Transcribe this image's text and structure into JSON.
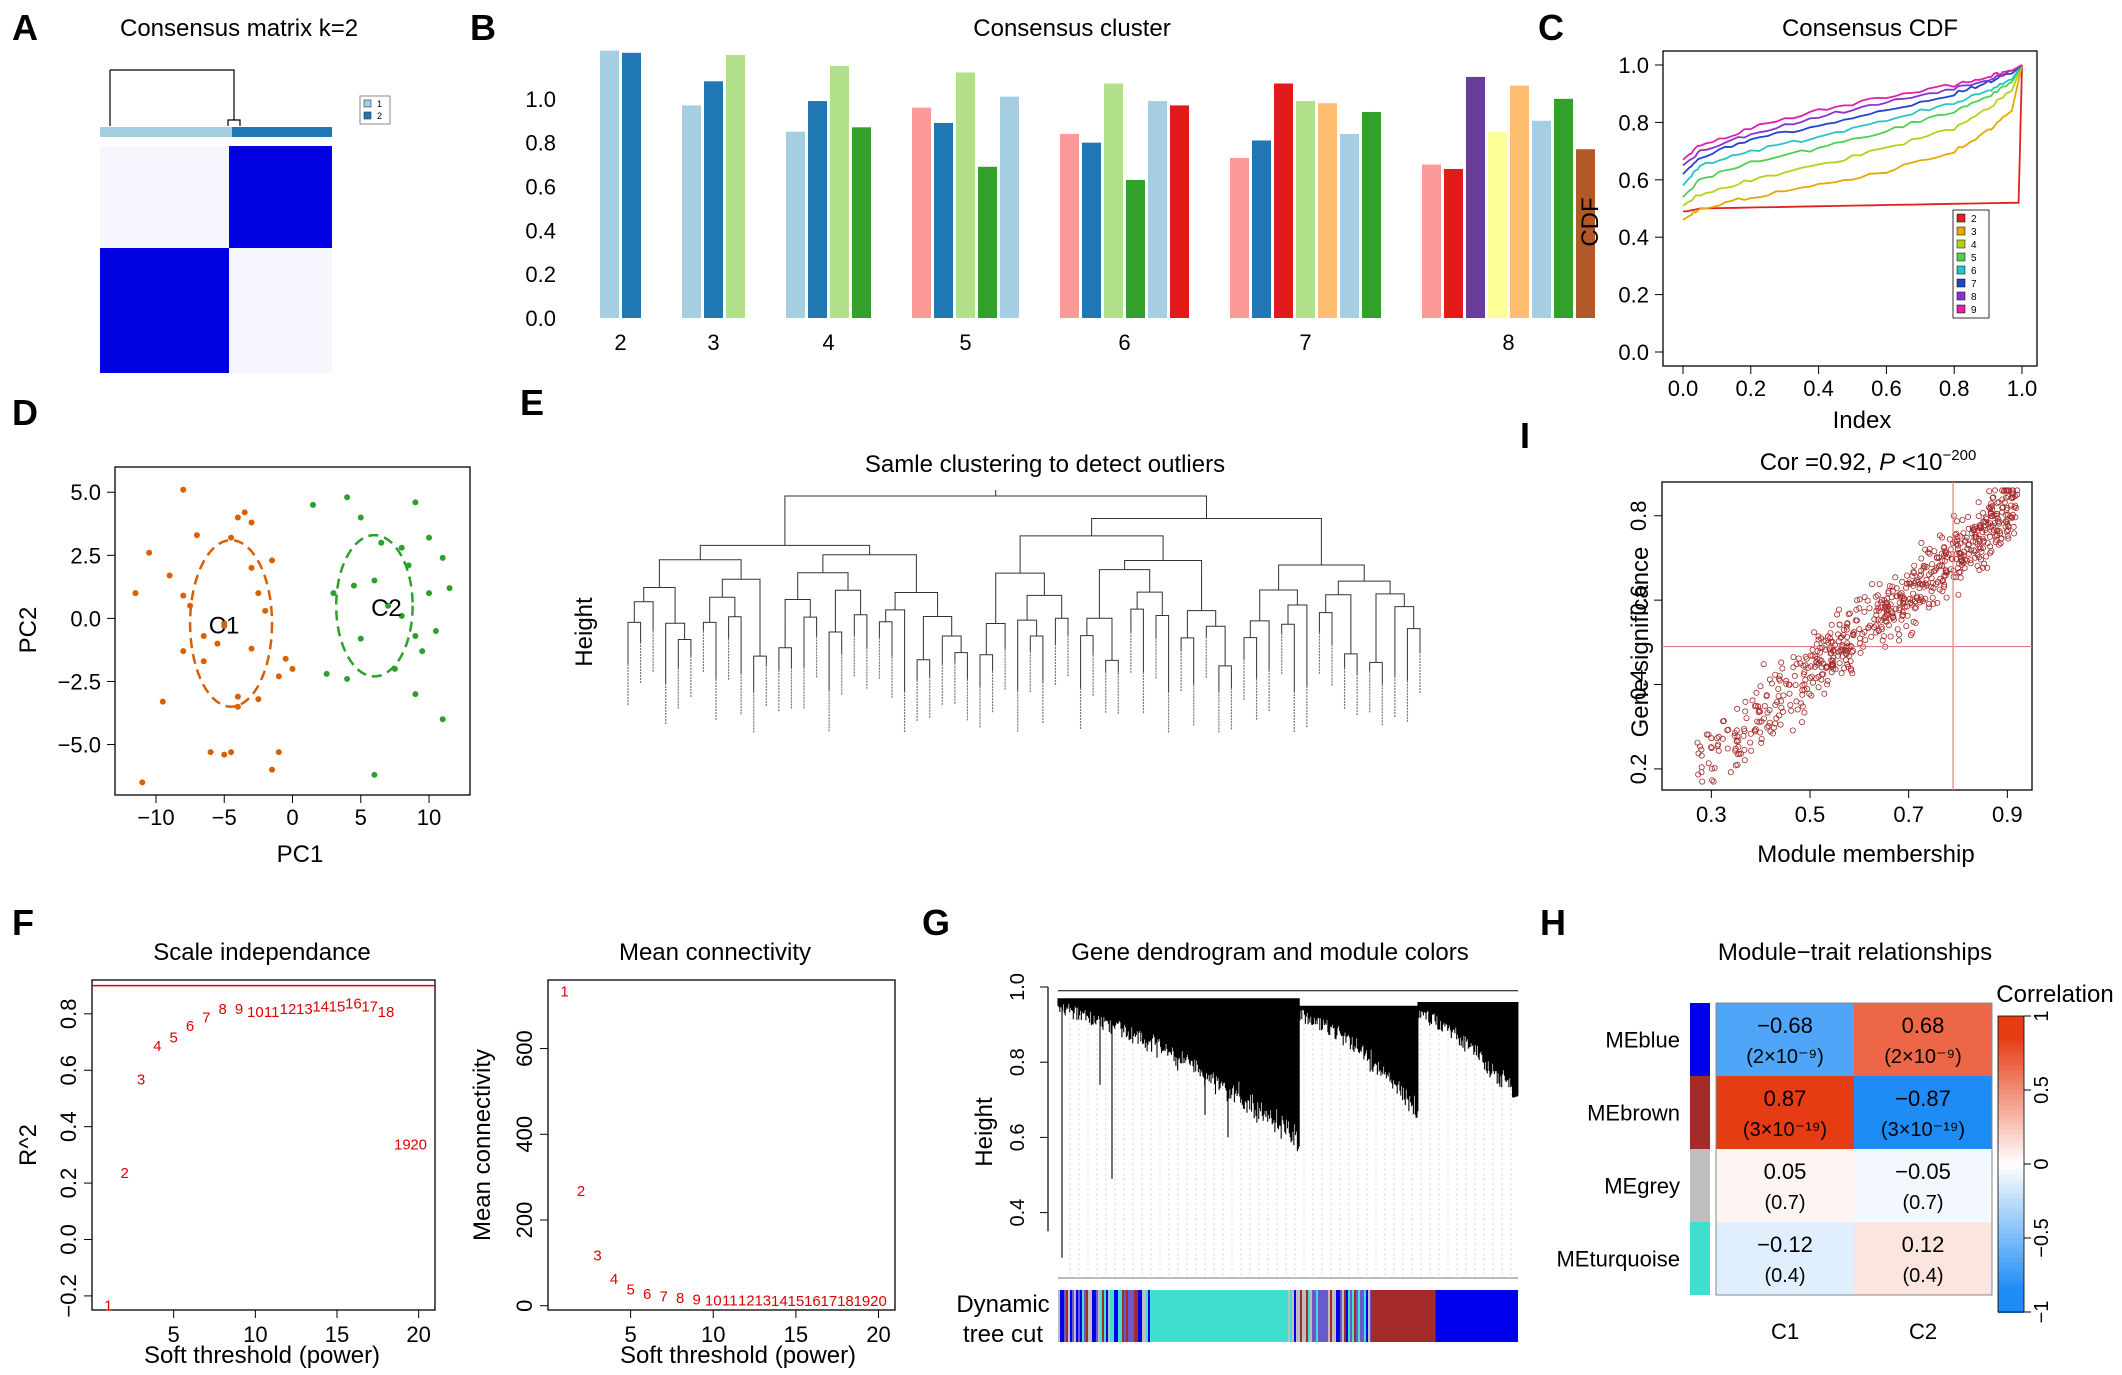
{
  "panels": {
    "A": {
      "letter": "A",
      "title": "Consensus matrix k=2",
      "legend": [
        "1",
        "2"
      ]
    },
    "B": {
      "letter": "B",
      "title": "Consensus cluster"
    },
    "C": {
      "letter": "C",
      "title": "Consensus CDF",
      "xlabel": "Index",
      "ylabel": "CDF"
    },
    "D": {
      "letter": "D",
      "xlabel": "PC1",
      "ylabel": "PC2",
      "cluster_labels": [
        "C1",
        "C2"
      ]
    },
    "E": {
      "letter": "E",
      "title": "Samle clustering to detect outliers",
      "ylabel": "Height"
    },
    "F": {
      "letter": "F",
      "title_left": "Scale independance",
      "title_right": "Mean connectivity",
      "xlabel": "Soft threshold (power)",
      "ylabel_left": "R^2",
      "ylabel_right": "Mean connectivity"
    },
    "G": {
      "letter": "G",
      "title": "Gene dendrogram and module colors",
      "ylabel": "Height",
      "bar_label_1": "Dynamic",
      "bar_label_2": "tree cut"
    },
    "H": {
      "letter": "H",
      "title": "Module−trait relationships",
      "legend_title": "Correlation"
    },
    "I": {
      "letter": "I",
      "title_prefix": "Cor =0.92, ",
      "title_p": "P",
      "title_rest": " <10",
      "title_exp": "−200",
      "xlabel": "Module membership",
      "ylabel": "Gene significance"
    }
  },
  "colors": {
    "c1": "#a6cee3",
    "c2": "#1f78b4",
    "c3": "#b2df8a",
    "c4": "#33a02c",
    "c5": "#fb9a99",
    "c6": "#e31a1c",
    "c7": "#fdbf6f",
    "c8": "#ff7f00",
    "c9": "#cab2d6",
    "c10": "#6a3d9a",
    "c11": "#ffff99",
    "c12": "#b15928",
    "pca_c1": "#d95f02",
    "pca_c2": "#2ca02c",
    "heat_blue": "#0000ff",
    "point_red": "#a52a2a"
  },
  "chart_data": [
    {
      "panel": "A",
      "type": "heatmap",
      "title": "Consensus matrix k=2",
      "cluster_sizes": [
        0.55,
        0.45
      ],
      "legend": [
        "1",
        "2"
      ]
    },
    {
      "panel": "B",
      "type": "bar",
      "title": "Consensus cluster",
      "ylim": [
        0,
        1.2
      ],
      "yticks": [
        "0.0",
        "0.2",
        "0.4",
        "0.6",
        "0.8",
        "1.0"
      ],
      "groups": [
        {
          "k": "2",
          "values": [
            1.22,
            1.21
          ],
          "colors": [
            "c1",
            "c2"
          ]
        },
        {
          "k": "3",
          "values": [
            0.97,
            1.08,
            1.2
          ],
          "colors": [
            "c1",
            "c2",
            "c3"
          ]
        },
        {
          "k": "4",
          "values": [
            0.85,
            0.99,
            1.15,
            0.87
          ],
          "colors": [
            "c1",
            "c2",
            "c3",
            "c4"
          ]
        },
        {
          "k": "5",
          "values": [
            0.96,
            0.89,
            1.12,
            0.69,
            1.01
          ],
          "colors": [
            "c5",
            "c2",
            "c3",
            "c4",
            "c1"
          ]
        },
        {
          "k": "6",
          "values": [
            0.84,
            0.8,
            1.07,
            0.63,
            0.99,
            0.97
          ],
          "colors": [
            "c5",
            "c2",
            "c3",
            "c4",
            "c1",
            "c6"
          ]
        },
        {
          "k": "7",
          "values": [
            0.73,
            0.81,
            1.07,
            0.99,
            0.98,
            0.84,
            0.94
          ],
          "colors": [
            "c5",
            "c2",
            "c6",
            "c3",
            "c7",
            "c1",
            "c4"
          ]
        },
        {
          "k": "8",
          "values": [
            0.7,
            0.68,
            1.1,
            0.85,
            1.06,
            0.9,
            1.0,
            0.77
          ],
          "colors": [
            "c5",
            "c6",
            "c10",
            "c11",
            "c7",
            "c1",
            "c4",
            "c12"
          ]
        }
      ]
    },
    {
      "panel": "C",
      "type": "line",
      "title": "Consensus CDF",
      "xlabel": "Index",
      "ylabel": "CDF",
      "xlim": [
        0,
        1
      ],
      "ylim": [
        0,
        1
      ],
      "xticks": [
        "0.0",
        "0.2",
        "0.4",
        "0.6",
        "0.8",
        "1.0"
      ],
      "yticks": [
        "0.0",
        "0.2",
        "0.4",
        "0.6",
        "0.8",
        "1.0"
      ],
      "legend": [
        "2",
        "3",
        "4",
        "5",
        "6",
        "7",
        "8",
        "9"
      ],
      "series": [
        {
          "name": "2",
          "color": "#dd2222",
          "x": [
            0,
            0.01,
            0.05,
            0.5,
            0.97,
            0.98,
            0.99,
            1.0
          ],
          "y": [
            0.49,
            0.49,
            0.5,
            0.51,
            0.52,
            0.52,
            0.52,
            1.0
          ]
        },
        {
          "name": "3",
          "color": "#e6a700",
          "x": [
            0,
            0.05,
            0.2,
            0.4,
            0.6,
            0.8,
            0.9,
            0.97,
            1.0
          ],
          "y": [
            0.46,
            0.5,
            0.54,
            0.58,
            0.63,
            0.7,
            0.77,
            0.84,
            1.0
          ]
        },
        {
          "name": "4",
          "color": "#b8cf1a",
          "x": [
            0,
            0.05,
            0.2,
            0.4,
            0.6,
            0.8,
            0.9,
            0.97,
            1.0
          ],
          "y": [
            0.51,
            0.55,
            0.6,
            0.65,
            0.71,
            0.78,
            0.85,
            0.91,
            1.0
          ]
        },
        {
          "name": "5",
          "color": "#4fd04f",
          "x": [
            0,
            0.05,
            0.2,
            0.4,
            0.6,
            0.8,
            0.9,
            0.97,
            1.0
          ],
          "y": [
            0.54,
            0.6,
            0.66,
            0.71,
            0.77,
            0.84,
            0.89,
            0.94,
            1.0
          ]
        },
        {
          "name": "6",
          "color": "#26c6c6",
          "x": [
            0,
            0.05,
            0.2,
            0.4,
            0.6,
            0.8,
            0.9,
            0.97,
            1.0
          ],
          "y": [
            0.58,
            0.65,
            0.7,
            0.75,
            0.81,
            0.87,
            0.91,
            0.95,
            1.0
          ]
        },
        {
          "name": "7",
          "color": "#2244cc",
          "x": [
            0,
            0.05,
            0.2,
            0.4,
            0.6,
            0.8,
            0.9,
            0.97,
            1.0
          ],
          "y": [
            0.62,
            0.68,
            0.74,
            0.79,
            0.84,
            0.9,
            0.94,
            0.97,
            1.0
          ]
        },
        {
          "name": "8",
          "color": "#8833cc",
          "x": [
            0,
            0.05,
            0.2,
            0.4,
            0.6,
            0.8,
            0.9,
            0.97,
            1.0
          ],
          "y": [
            0.65,
            0.7,
            0.76,
            0.82,
            0.87,
            0.92,
            0.95,
            0.98,
            1.0
          ]
        },
        {
          "name": "9",
          "color": "#dd22aa",
          "x": [
            0,
            0.05,
            0.2,
            0.4,
            0.6,
            0.8,
            0.9,
            0.97,
            1.0
          ],
          "y": [
            0.67,
            0.72,
            0.78,
            0.84,
            0.89,
            0.93,
            0.96,
            0.98,
            1.0
          ]
        }
      ]
    },
    {
      "panel": "D",
      "type": "scatter",
      "xlabel": "PC1",
      "ylabel": "PC2",
      "xlim": [
        -13,
        13
      ],
      "ylim": [
        -7,
        6
      ],
      "xticks": [
        "−10",
        "−5",
        "0",
        "5",
        "10"
      ],
      "yticks": [
        "−5.0",
        "−2.5",
        "0.0",
        "2.5",
        "5.0"
      ],
      "series": [
        {
          "name": "C1",
          "color": "#d95f02",
          "x": [
            -8,
            -10.5,
            -11.5,
            -7.5,
            -7,
            -9,
            -8,
            -6.5,
            -5.5,
            -5,
            -4.5,
            -4,
            -3.5,
            -3,
            -2.5,
            -2,
            -1.5,
            -1,
            -0.5,
            -2.5,
            -3,
            -4,
            -1.5,
            -8,
            -9.5,
            -4.5,
            -5,
            -6,
            -6.5,
            -3,
            -11,
            -1,
            0,
            -5,
            -4
          ],
          "y": [
            5.1,
            2.6,
            1.0,
            0.5,
            3.3,
            1.7,
            0.9,
            -0.7,
            -1.0,
            -0.2,
            3.2,
            4.0,
            4.2,
            2.0,
            1.0,
            0.3,
            2.3,
            -2.3,
            -1.6,
            -3.2,
            -1.2,
            -3.5,
            -6.0,
            -1.3,
            -3.3,
            -5.3,
            -5.4,
            -5.3,
            -1.7,
            3.8,
            -6.5,
            -5.3,
            -2.0,
            -0.3,
            -3.1
          ]
        },
        {
          "name": "C2",
          "color": "#2ca02c",
          "x": [
            1.5,
            4,
            5,
            6.5,
            8,
            9,
            10,
            11,
            3,
            4.5,
            6,
            7,
            8.5,
            10,
            11.5,
            9,
            7.5,
            9,
            4,
            5,
            2.5,
            8,
            10.5,
            6,
            11,
            9.5
          ],
          "y": [
            4.5,
            4.8,
            4.0,
            3.0,
            2.8,
            4.6,
            3.2,
            2.4,
            1.0,
            1.3,
            1.5,
            0.5,
            2.1,
            1.0,
            1.2,
            -0.7,
            -2.0,
            -3.0,
            -2.4,
            -0.8,
            -2.2,
            0.1,
            -0.5,
            -6.2,
            -4.0,
            -1.3
          ]
        }
      ],
      "ellipses": [
        {
          "name": "C1",
          "cx": -4.5,
          "cy": -0.2,
          "rx": 3.0,
          "ry": 3.3
        },
        {
          "name": "C2",
          "cx": 6.0,
          "cy": 0.5,
          "rx": 2.8,
          "ry": 2.8
        }
      ]
    },
    {
      "panel": "E",
      "type": "dendrogram",
      "title": "Samle clustering to detect outliers",
      "ylabel": "Height",
      "leaf_count": 64
    },
    {
      "panel": "F-left",
      "type": "scatter",
      "title": "Scale independance",
      "xlabel": "Soft threshold (power)",
      "ylabel": "R^2",
      "xlim": [
        0,
        21
      ],
      "ylim": [
        -0.25,
        0.92
      ],
      "xticks": [
        "5",
        "10",
        "15",
        "20"
      ],
      "yticks": [
        "−0.2",
        "0.0",
        "0.2",
        "0.4",
        "0.6",
        "0.8"
      ],
      "cutoff": 0.9,
      "x": [
        1,
        2,
        3,
        4,
        5,
        6,
        7,
        8,
        9,
        10,
        11,
        12,
        13,
        14,
        15,
        16,
        17,
        18,
        19,
        20
      ],
      "y": [
        -0.23,
        0.24,
        0.57,
        0.69,
        0.72,
        0.76,
        0.79,
        0.82,
        0.82,
        0.81,
        0.81,
        0.82,
        0.82,
        0.83,
        0.83,
        0.84,
        0.83,
        0.81,
        0.34,
        0.34
      ],
      "labels": [
        "1",
        "2",
        "3",
        "4",
        "5",
        "6",
        "7",
        "8",
        "9",
        "10",
        "11",
        "12",
        "13",
        "14",
        "15",
        "16",
        "17",
        "18",
        "19",
        "20"
      ]
    },
    {
      "panel": "F-right",
      "type": "scatter",
      "title": "Mean connectivity",
      "xlabel": "Soft threshold (power)",
      "ylabel": "Mean connectivity",
      "xlim": [
        0,
        21
      ],
      "ylim": [
        -10,
        760
      ],
      "xticks": [
        "5",
        "10",
        "15",
        "20"
      ],
      "yticks": [
        "0",
        "200",
        "400",
        "600"
      ],
      "x": [
        1,
        2,
        3,
        4,
        5,
        6,
        7,
        8,
        9,
        10,
        11,
        12,
        13,
        14,
        15,
        16,
        17,
        18,
        19,
        20
      ],
      "y": [
        735,
        270,
        120,
        65,
        40,
        30,
        24,
        20,
        17,
        15,
        14,
        14,
        14,
        13,
        13,
        13,
        13,
        13,
        13,
        13
      ],
      "labels": [
        "1",
        "2",
        "3",
        "4",
        "5",
        "6",
        "7",
        "8",
        "9",
        "10",
        "11",
        "12",
        "13",
        "14",
        "15",
        "16",
        "17",
        "18",
        "19",
        "20"
      ]
    },
    {
      "panel": "G",
      "type": "dendrogram",
      "title": "Gene dendrogram and module colors",
      "ylabel": "Height",
      "ylim": [
        0.25,
        1.0
      ],
      "yticks": [
        "0.4",
        "0.6",
        "0.8",
        "1.0"
      ],
      "module_bar": [
        {
          "color": "mixed",
          "fraction": 0.2
        },
        {
          "color": "turquoise",
          "fraction": 0.3
        },
        {
          "color": "mixed",
          "fraction": 0.18
        },
        {
          "color": "brown",
          "fraction": 0.14
        },
        {
          "color": "blue",
          "fraction": 0.18
        }
      ]
    },
    {
      "panel": "H",
      "type": "heatmap",
      "title": "Module−trait relationships",
      "rows": [
        "MEblue",
        "MEbrown",
        "MEgrey",
        "MEturquoise"
      ],
      "row_colors": [
        "#0000ee",
        "#a52a2a",
        "#bebebe",
        "#40e0d0"
      ],
      "columns": [
        "C1",
        "C2"
      ],
      "values": [
        [
          -0.68,
          0.68
        ],
        [
          0.87,
          -0.87
        ],
        [
          0.05,
          -0.05
        ],
        [
          -0.12,
          0.12
        ]
      ],
      "value_text": [
        [
          "−0.68",
          "0.68"
        ],
        [
          "0.87",
          "−0.87"
        ],
        [
          "0.05",
          "−0.05"
        ],
        [
          "−0.12",
          "0.12"
        ]
      ],
      "p_text": [
        [
          "(2×10⁻⁹)",
          "(2×10⁻⁹)"
        ],
        [
          "(3×10⁻¹⁹)",
          "(3×10⁻¹⁹)"
        ],
        [
          "(0.7)",
          "(0.7)"
        ],
        [
          "(0.4)",
          "(0.4)"
        ]
      ],
      "legend_title": "Correlation",
      "legend_ticks": [
        "1",
        "0.5",
        "0",
        "−0.5",
        "−1"
      ]
    },
    {
      "panel": "I",
      "type": "scatter",
      "title": "Cor =0.92, P <10−200",
      "xlabel": "Module membership",
      "ylabel": "Gene significance",
      "xlim": [
        0.2,
        0.95
      ],
      "ylim": [
        0.15,
        0.88
      ],
      "xticks": [
        "0.3",
        "0.5",
        "0.7",
        "0.9"
      ],
      "yticks": [
        "0.2",
        "0.4",
        "0.6",
        "0.8"
      ],
      "vline": 0.79,
      "hline": 0.49,
      "cor": 0.92,
      "n_points": 700
    }
  ]
}
